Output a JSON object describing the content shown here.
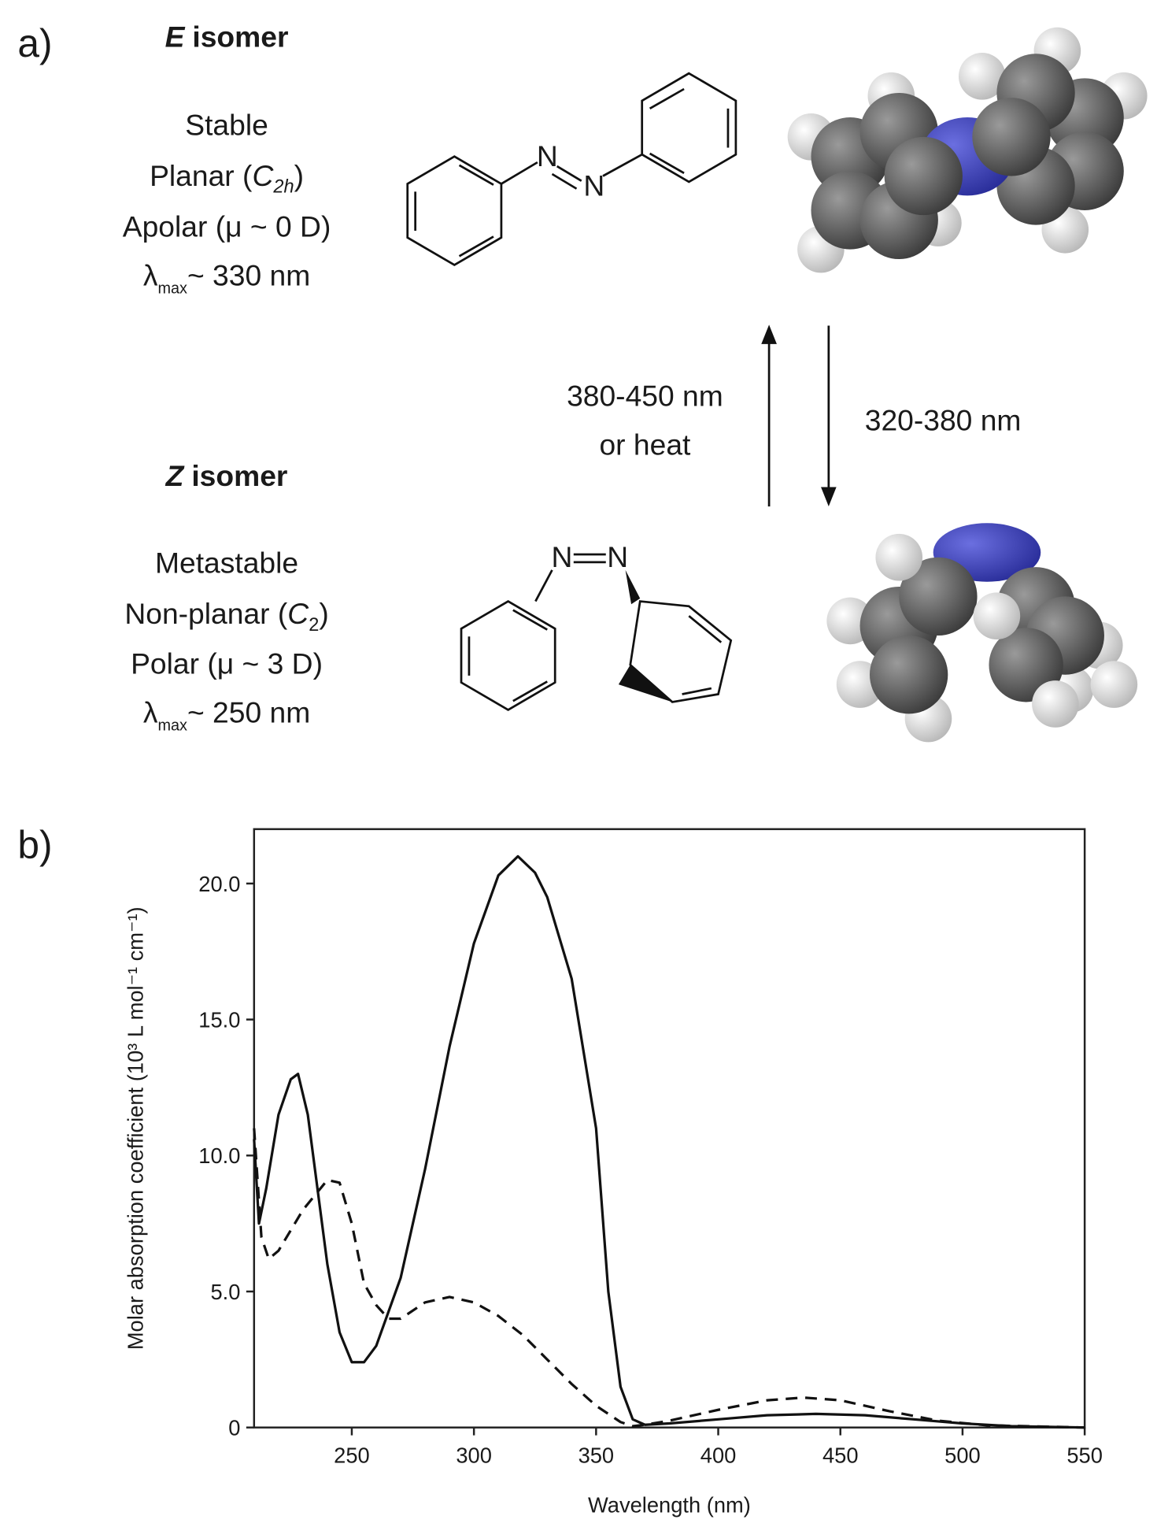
{
  "panel_a": {
    "label": "a)",
    "e_isomer": {
      "symbol": "E",
      "title": "isomer",
      "lines": [
        [
          "Stable"
        ],
        [
          "Planar (",
          "C",
          "2h",
          ")"
        ],
        [
          "Apolar (μ ~ 0 D)"
        ],
        [
          "λ",
          "max",
          "~ 330 nm"
        ]
      ]
    },
    "z_isomer": {
      "symbol": "Z",
      "title": "isomer",
      "lines": [
        [
          "Metastable"
        ],
        [
          "Non-planar (",
          "C",
          "2",
          ")"
        ],
        [
          "Polar (μ ~ 3 D)"
        ],
        [
          "λ",
          "max",
          "~ 250 nm"
        ]
      ]
    },
    "atoms": {
      "e_n1": "N",
      "e_n2": "N",
      "z_n1": "N",
      "z_n2": "N"
    },
    "back_reaction": [
      "380-450 nm",
      "or heat"
    ],
    "forward_reaction": "320-380 nm"
  },
  "chart_data": {
    "type": "line",
    "panel_label": "b)",
    "x_label": "Wavelength (nm)",
    "y_label": "Molar absorption coefficient (10³ L mol⁻¹ cm⁻¹)",
    "xlim": [
      210,
      550
    ],
    "ylim": [
      0,
      22
    ],
    "xticks": [
      250,
      300,
      350,
      400,
      450,
      500,
      550
    ],
    "yticks": [
      0,
      {
        "value": 5,
        "label": "5.0"
      },
      {
        "value": 10,
        "label": "10.0"
      },
      {
        "value": 15,
        "label": "15.0"
      },
      {
        "value": 20,
        "label": "20.0"
      }
    ],
    "series": [
      {
        "color": "#111111",
        "line_style": "solid",
        "x": [
          210,
          212,
          215,
          220,
          225,
          228,
          232,
          240,
          245,
          250,
          255,
          260,
          270,
          280,
          290,
          300,
          310,
          318,
          325,
          330,
          340,
          350,
          355,
          360,
          365,
          370,
          380,
          400,
          420,
          440,
          460,
          480,
          500,
          520,
          550
        ],
        "values": [
          10.6,
          7.5,
          8.8,
          11.5,
          12.8,
          13.0,
          11.5,
          6.0,
          3.5,
          2.4,
          2.4,
          3.0,
          5.5,
          9.5,
          14.0,
          17.8,
          20.3,
          21.0,
          20.4,
          19.5,
          16.5,
          11.0,
          5.0,
          1.5,
          0.3,
          0.1,
          0.15,
          0.3,
          0.45,
          0.5,
          0.45,
          0.3,
          0.15,
          0.05,
          0
        ]
      },
      {
        "color": "#111111",
        "line_style": "dashed",
        "x": [
          210,
          213,
          216,
          220,
          230,
          240,
          245,
          250,
          255,
          260,
          265,
          270,
          280,
          290,
          300,
          310,
          320,
          330,
          340,
          350,
          360,
          365,
          370,
          380,
          400,
          420,
          435,
          450,
          470,
          490,
          510,
          550
        ],
        "values": [
          11.0,
          7.0,
          6.2,
          6.5,
          8.0,
          9.1,
          9.0,
          7.5,
          5.3,
          4.5,
          4.0,
          4.0,
          4.6,
          4.8,
          4.6,
          4.1,
          3.4,
          2.5,
          1.6,
          0.8,
          0.2,
          0.05,
          0.1,
          0.25,
          0.65,
          1.0,
          1.1,
          1.0,
          0.6,
          0.25,
          0.08,
          0
        ]
      }
    ]
  }
}
